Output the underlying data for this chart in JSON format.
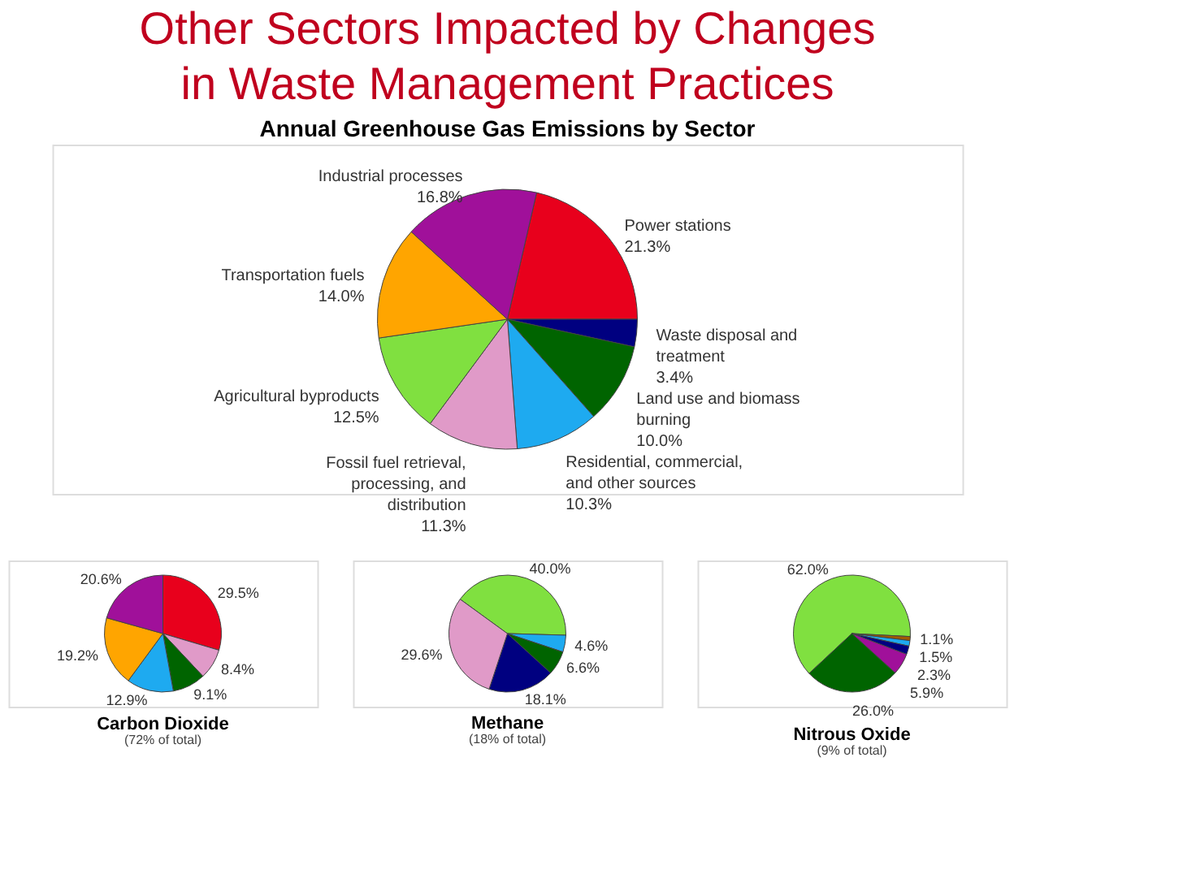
{
  "chart_data": [
    {
      "type": "pie",
      "title": "Other Sectors Impacted by Changes in Waste Management Practices",
      "subtitle": "Annual Greenhouse Gas Emissions by Sector",
      "categories": [
        "Power stations",
        "Waste disposal and treatment",
        "Land use and biomass burning",
        "Residential, commercial, and other sources",
        "Fossil fuel retrieval, processing, and distribution",
        "Agricultural byproducts",
        "Transportation fuels",
        "Industrial processes"
      ],
      "values": [
        21.3,
        3.4,
        10.0,
        10.3,
        11.3,
        12.5,
        14.0,
        16.8
      ],
      "value_labels": [
        "21.3%",
        "3.4%",
        "10.0%",
        "10.3%",
        "11.3%",
        "12.5%",
        "14.0%",
        "16.8%"
      ],
      "colors": [
        "#e8001c",
        "#000080",
        "#006400",
        "#1eaaf0",
        "#e09ac8",
        "#80e040",
        "#ffa500",
        "#a0109a"
      ]
    },
    {
      "type": "pie",
      "title": "Carbon Dioxide",
      "subtitle": "(72% of total)",
      "categories": [
        null,
        null,
        null,
        null,
        null,
        null
      ],
      "values": [
        29.5,
        8.4,
        9.1,
        12.9,
        19.2,
        20.6
      ],
      "value_labels": [
        "29.5%",
        "8.4%",
        "9.1%",
        "12.9%",
        "19.2%",
        "20.6%"
      ],
      "colors": [
        "#e8001c",
        "#e09ac8",
        "#006400",
        "#1eaaf0",
        "#ffa500",
        "#a0109a"
      ]
    },
    {
      "type": "pie",
      "title": "Methane",
      "subtitle": "(18% of total)",
      "categories": [
        null,
        null,
        null,
        null,
        null
      ],
      "values": [
        40.0,
        4.6,
        6.6,
        18.1,
        29.6
      ],
      "value_labels": [
        "40.0%",
        "4.6%",
        "6.6%",
        "18.1%",
        "29.6%"
      ],
      "colors": [
        "#80e040",
        "#1eaaf0",
        "#006400",
        "#000080",
        "#e09ac8"
      ]
    },
    {
      "type": "pie",
      "title": "Nitrous Oxide",
      "subtitle": "(9% of total)",
      "categories": [
        null,
        null,
        null,
        null,
        null,
        null
      ],
      "values": [
        62.0,
        1.1,
        1.5,
        2.3,
        5.9,
        26.0
      ],
      "value_labels": [
        "62.0%",
        "1.1%",
        "1.5%",
        "2.3%",
        "5.9%",
        "26.0%"
      ],
      "colors": [
        "#80e040",
        "#a05a00",
        "#1eaaf0",
        "#000080",
        "#a0109a",
        "#006400"
      ]
    }
  ]
}
